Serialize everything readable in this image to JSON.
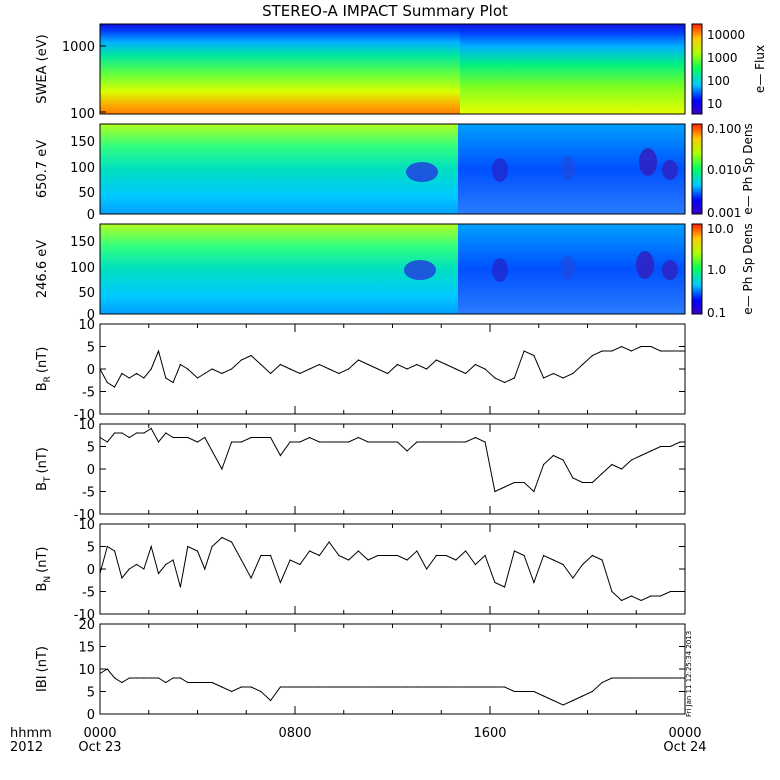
{
  "title": "STEREO-A IMPACT Summary Plot",
  "timestamp": "Fri Jan 11 12:25:34 2013",
  "time_axis": {
    "row1_label": "hhmm",
    "row2_label": "2012",
    "ticks": [
      {
        "time": "0000",
        "date": "Oct 23",
        "hours": 0
      },
      {
        "time": "0800",
        "date": "",
        "hours": 8
      },
      {
        "time": "1600",
        "date": "",
        "hours": 16
      },
      {
        "time": "0000",
        "date": "Oct 24",
        "hours": 24
      }
    ]
  },
  "spectrograms": [
    {
      "ylabel": "SWEA (eV)",
      "yticks": [
        "1000",
        "100"
      ],
      "cbar_label": "e— Flux",
      "cbar_ticks": [
        "10000",
        "1000",
        "100",
        "10"
      ],
      "log_scale": true
    },
    {
      "ylabel": "650.7 eV",
      "yticks": [
        "150",
        "100",
        "50",
        "0"
      ],
      "cbar_label": "e— Ph Sp Dens",
      "cbar_ticks": [
        "0.100",
        "0.010",
        "0.001"
      ],
      "log_scale": false
    },
    {
      "ylabel": "246.6 eV",
      "yticks": [
        "150",
        "100",
        "50",
        "0"
      ],
      "cbar_label": "e— Ph Sp Dens",
      "cbar_ticks": [
        "10.0",
        "1.0",
        "0.1"
      ],
      "log_scale": false
    }
  ],
  "colors": {
    "line": "#000000",
    "spectro_low": "#1010e0",
    "spectro_high": "#e04000"
  },
  "chart_data": [
    {
      "type": "line",
      "ylabel": "B_R (nT)",
      "ylabel_main": "B",
      "ylabel_sub": "R",
      "ylabel_unit": "(nT)",
      "ylim": [
        -10,
        10
      ],
      "yticks": [
        "10",
        "5",
        "0",
        "-5",
        "-10"
      ],
      "x_unit": "hours",
      "x": [
        0,
        0.3,
        0.6,
        0.9,
        1.2,
        1.5,
        1.8,
        2.1,
        2.4,
        2.7,
        3,
        3.3,
        3.6,
        4,
        4.3,
        4.6,
        5,
        5.4,
        5.8,
        6.2,
        6.6,
        7,
        7.4,
        7.8,
        8.2,
        8.6,
        9,
        9.4,
        9.8,
        10.2,
        10.6,
        11,
        11.4,
        11.8,
        12.2,
        12.6,
        13,
        13.4,
        13.8,
        14.2,
        14.6,
        15,
        15.4,
        15.8,
        16.2,
        16.6,
        17,
        17.4,
        17.8,
        18.2,
        18.6,
        19,
        19.4,
        19.8,
        20.2,
        20.6,
        21,
        21.4,
        21.8,
        22.2,
        22.6,
        23,
        23.4,
        23.8,
        24
      ],
      "values": [
        0,
        -3,
        -4,
        -1,
        -2,
        -1,
        -2,
        0,
        4,
        -2,
        -3,
        1,
        0,
        -2,
        -1,
        0,
        -1,
        0,
        2,
        3,
        1,
        -1,
        1,
        0,
        -1,
        0,
        1,
        0,
        -1,
        0,
        2,
        1,
        0,
        -1,
        1,
        0,
        1,
        0,
        2,
        1,
        0,
        -1,
        1,
        0,
        -2,
        -3,
        -2,
        4,
        3,
        -2,
        -1,
        -2,
        -1,
        1,
        3,
        4,
        4,
        5,
        4,
        5,
        5,
        4,
        4,
        4,
        4
      ]
    },
    {
      "type": "line",
      "ylabel": "B_T (nT)",
      "ylabel_main": "B",
      "ylabel_sub": "T",
      "ylabel_unit": "(nT)",
      "ylim": [
        -10,
        10
      ],
      "yticks": [
        "10",
        "5",
        "0",
        "-5",
        "-10"
      ],
      "x_unit": "hours",
      "x": [
        0,
        0.3,
        0.6,
        0.9,
        1.2,
        1.5,
        1.8,
        2.1,
        2.4,
        2.7,
        3,
        3.3,
        3.6,
        4,
        4.3,
        4.6,
        5,
        5.4,
        5.8,
        6.2,
        6.6,
        7,
        7.4,
        7.8,
        8.2,
        8.6,
        9,
        9.4,
        9.8,
        10.2,
        10.6,
        11,
        11.4,
        11.8,
        12.2,
        12.6,
        13,
        13.4,
        13.8,
        14.2,
        14.6,
        15,
        15.4,
        15.8,
        16.2,
        16.6,
        17,
        17.4,
        17.8,
        18.2,
        18.6,
        19,
        19.4,
        19.8,
        20.2,
        20.6,
        21,
        21.4,
        21.8,
        22.2,
        22.6,
        23,
        23.4,
        23.8,
        24
      ],
      "values": [
        7,
        6,
        8,
        8,
        7,
        8,
        8,
        9,
        6,
        8,
        7,
        7,
        7,
        6,
        7,
        4,
        0,
        6,
        6,
        7,
        7,
        7,
        3,
        6,
        6,
        7,
        6,
        6,
        6,
        6,
        7,
        6,
        6,
        6,
        6,
        4,
        6,
        6,
        6,
        6,
        6,
        6,
        7,
        6,
        -5,
        -4,
        -3,
        -3,
        -5,
        1,
        3,
        2,
        -2,
        -3,
        -3,
        -1,
        1,
        0,
        2,
        3,
        4,
        5,
        5,
        6,
        6
      ]
    },
    {
      "type": "line",
      "ylabel": "B_N (nT)",
      "ylabel_main": "B",
      "ylabel_sub": "N",
      "ylabel_unit": "(nT)",
      "ylim": [
        -10,
        10
      ],
      "yticks": [
        "10",
        "5",
        "0",
        "-5",
        "-10"
      ],
      "x_unit": "hours",
      "x": [
        0,
        0.3,
        0.6,
        0.9,
        1.2,
        1.5,
        1.8,
        2.1,
        2.4,
        2.7,
        3,
        3.3,
        3.6,
        4,
        4.3,
        4.6,
        5,
        5.4,
        5.8,
        6.2,
        6.6,
        7,
        7.4,
        7.8,
        8.2,
        8.6,
        9,
        9.4,
        9.8,
        10.2,
        10.6,
        11,
        11.4,
        11.8,
        12.2,
        12.6,
        13,
        13.4,
        13.8,
        14.2,
        14.6,
        15,
        15.4,
        15.8,
        16.2,
        16.6,
        17,
        17.4,
        17.8,
        18.2,
        18.6,
        19,
        19.4,
        19.8,
        20.2,
        20.6,
        21,
        21.4,
        21.8,
        22.2,
        22.6,
        23,
        23.4,
        23.8,
        24
      ],
      "values": [
        -1,
        5,
        4,
        -2,
        0,
        1,
        0,
        5,
        -1,
        1,
        2,
        -4,
        5,
        4,
        0,
        5,
        7,
        6,
        2,
        -2,
        3,
        3,
        -3,
        2,
        1,
        4,
        3,
        6,
        3,
        2,
        4,
        2,
        3,
        3,
        3,
        2,
        4,
        0,
        3,
        3,
        2,
        4,
        1,
        3,
        -3,
        -4,
        4,
        3,
        -3,
        3,
        2,
        1,
        -2,
        1,
        3,
        2,
        -5,
        -7,
        -6,
        -7,
        -6,
        -6,
        -5,
        -5,
        -5
      ]
    },
    {
      "type": "line",
      "ylabel": "|B| (nT)",
      "ylabel_main": "IBI",
      "ylabel_sub": "",
      "ylabel_unit": "(nT)",
      "ylim": [
        0,
        20
      ],
      "yticks": [
        "20",
        "15",
        "10",
        "5",
        "0"
      ],
      "x_unit": "hours",
      "x": [
        0,
        0.3,
        0.6,
        0.9,
        1.2,
        1.5,
        1.8,
        2.1,
        2.4,
        2.7,
        3,
        3.3,
        3.6,
        4,
        4.3,
        4.6,
        5,
        5.4,
        5.8,
        6.2,
        6.6,
        7,
        7.4,
        7.8,
        8.2,
        8.6,
        9,
        9.4,
        9.8,
        10.2,
        10.6,
        11,
        11.4,
        11.8,
        12.2,
        12.6,
        13,
        13.4,
        13.8,
        14.2,
        14.6,
        15,
        15.4,
        15.8,
        16.2,
        16.6,
        17,
        17.4,
        17.8,
        18.2,
        18.6,
        19,
        19.4,
        19.8,
        20.2,
        20.6,
        21,
        21.4,
        21.8,
        22.2,
        22.6,
        23,
        23.4,
        23.8,
        24
      ],
      "values": [
        9,
        10,
        8,
        7,
        8,
        8,
        8,
        8,
        8,
        7,
        8,
        8,
        7,
        7,
        7,
        7,
        6,
        5,
        6,
        6,
        5,
        3,
        6,
        6,
        6,
        6,
        6,
        6,
        6,
        6,
        6,
        6,
        6,
        6,
        6,
        6,
        6,
        6,
        6,
        6,
        6,
        6,
        6,
        6,
        6,
        6,
        5,
        5,
        5,
        4,
        3,
        2,
        3,
        4,
        5,
        7,
        8,
        8,
        8,
        8,
        8,
        8,
        8,
        8,
        8
      ]
    }
  ]
}
